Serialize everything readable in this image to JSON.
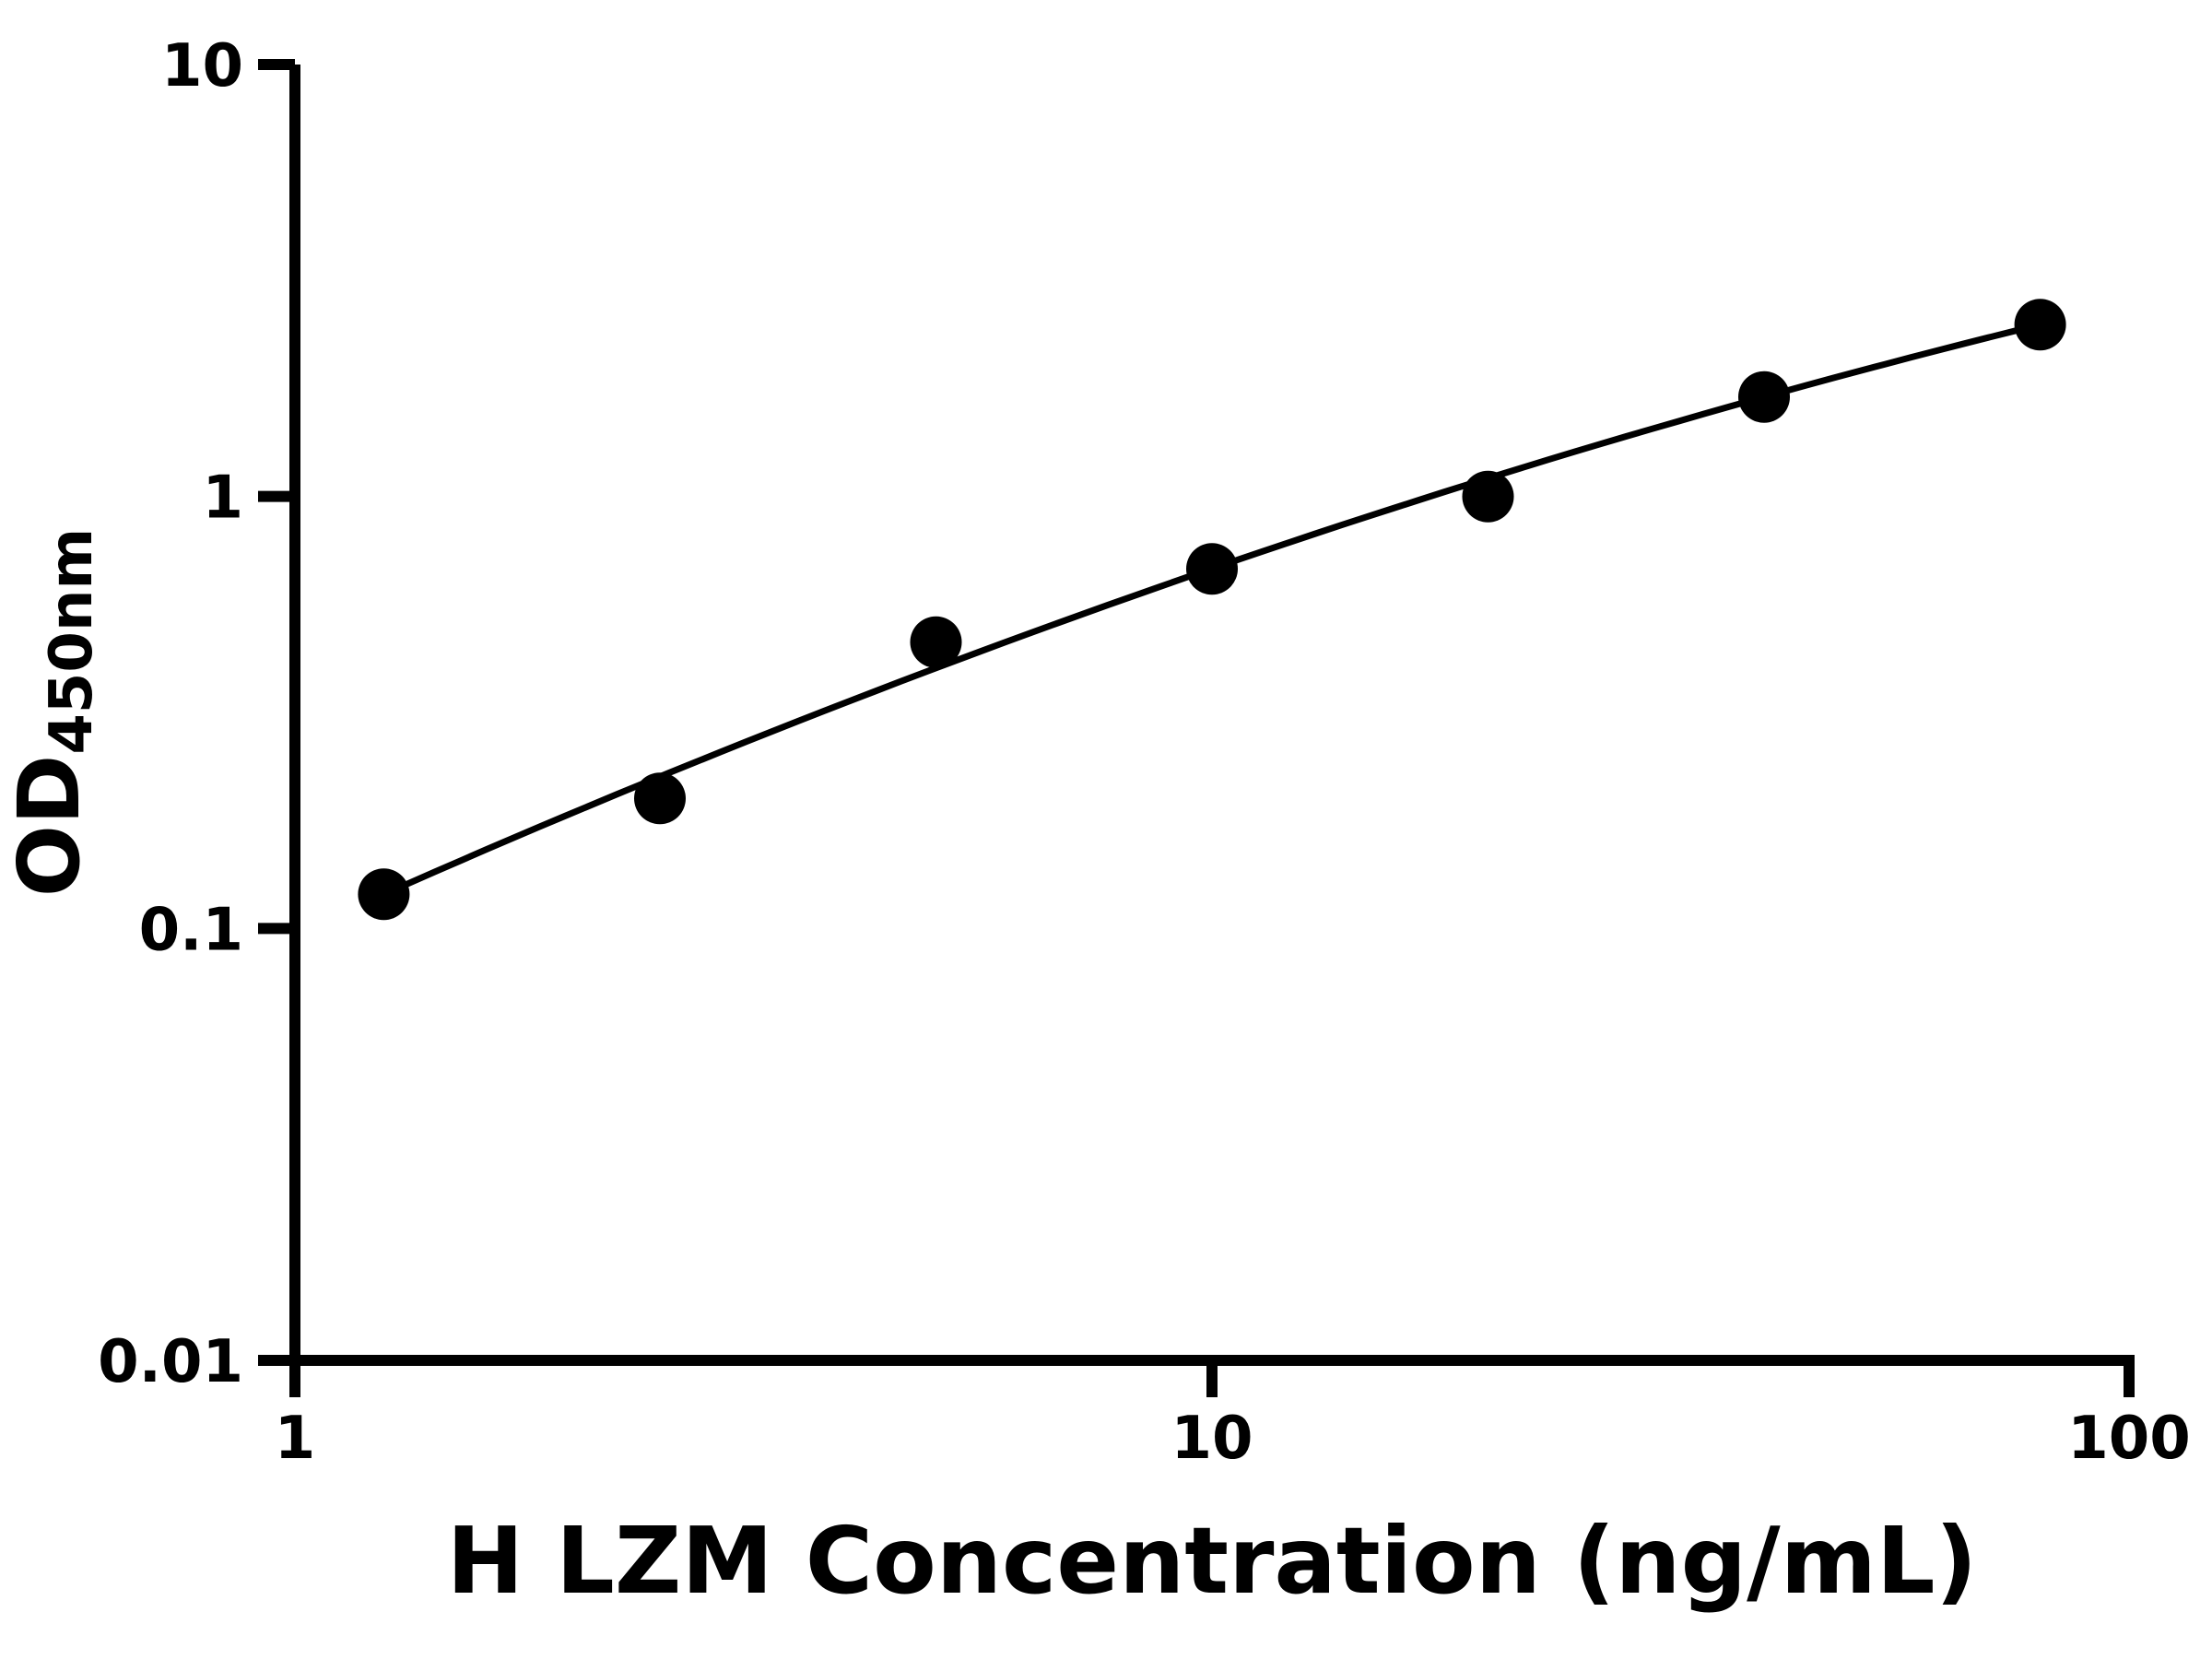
{
  "chart_data": {
    "type": "scatter",
    "title": "",
    "xlabel": "H LZM Concentration (ng/mL)",
    "ylabel_main": "OD",
    "ylabel_sub": "450nm",
    "x_scale": "log",
    "y_scale": "log",
    "xlim": [
      1,
      100
    ],
    "ylim": [
      0.01,
      10
    ],
    "x": [
      1.25,
      2.5,
      5,
      10,
      20,
      40,
      80
    ],
    "y": [
      0.12,
      0.2,
      0.46,
      0.68,
      1.0,
      1.7,
      2.5
    ],
    "x_ticks": [
      {
        "value": 1,
        "label": "1"
      },
      {
        "value": 10,
        "label": "10"
      },
      {
        "value": 100,
        "label": "100"
      }
    ],
    "y_ticks": [
      {
        "value": 10,
        "label": "10"
      },
      {
        "value": 1,
        "label": "1"
      },
      {
        "value": 0.1,
        "label": "0.1"
      },
      {
        "value": 0.01,
        "label": "0.01"
      }
    ],
    "trendline": {
      "type": "quadratic_loglog",
      "description": "log10(y) = a + b*u + c*u^2 where u = log10(x)",
      "coefficients": {
        "a": -1.013,
        "b": 0.962,
        "c": -0.116
      },
      "u_range": [
        0.0969,
        1.9031
      ]
    },
    "grid": "off",
    "legend": "none",
    "colors": {
      "points": "#000000",
      "line": "#000000",
      "axis": "#000000",
      "background": "#ffffff"
    }
  }
}
